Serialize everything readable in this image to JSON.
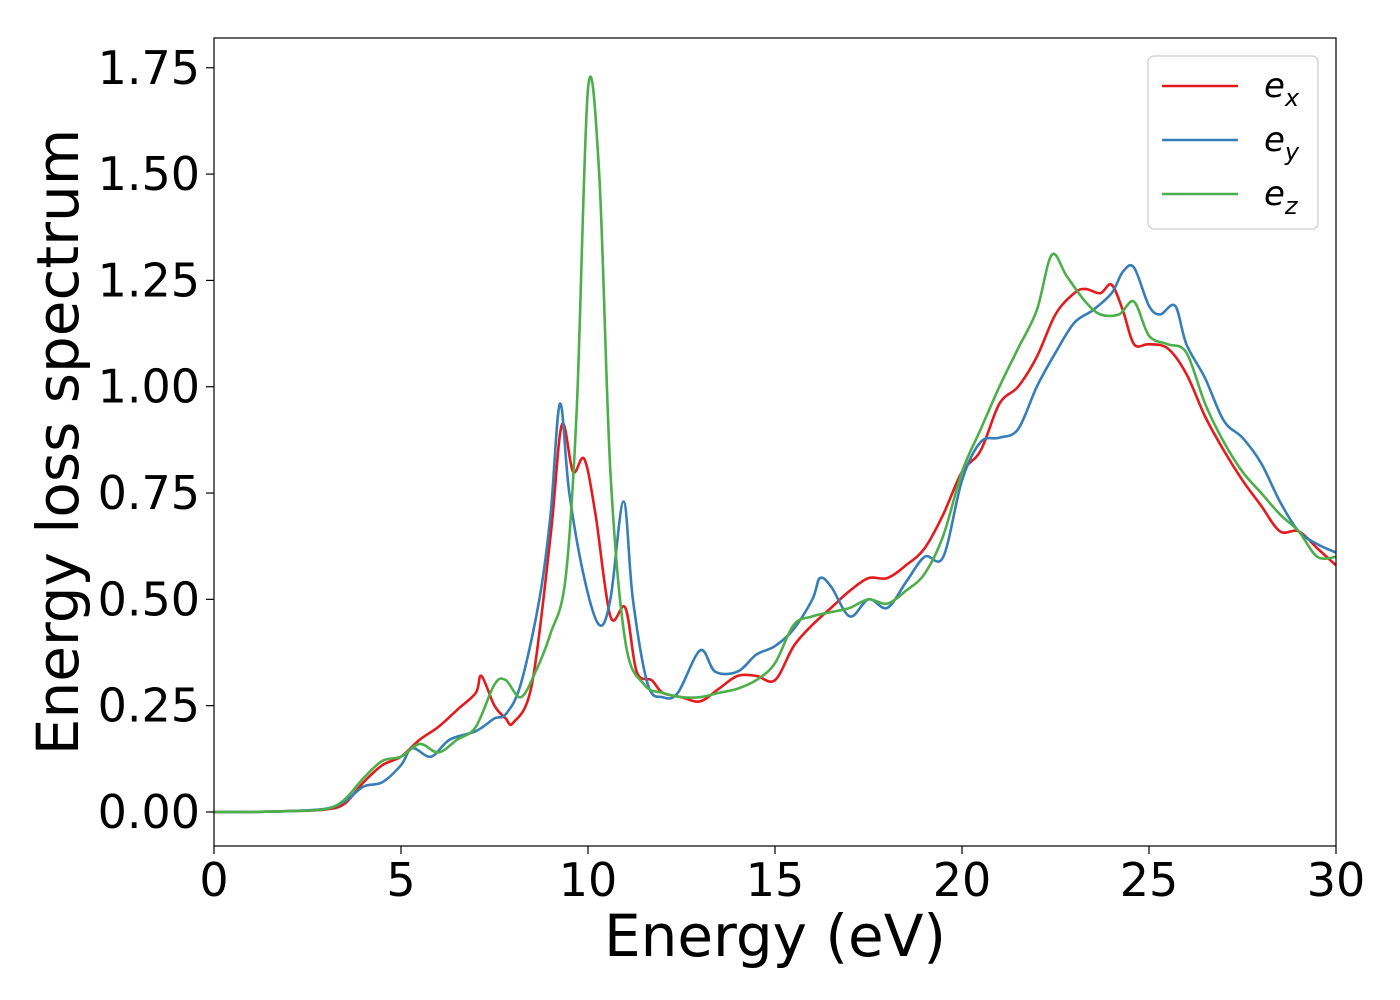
{
  "chart_data": {
    "type": "line",
    "xlabel": "Energy (eV)",
    "ylabel": "Energy loss spectrum",
    "xlim": [
      0,
      30
    ],
    "ylim": [
      -0.08,
      1.82
    ],
    "x_ticks": [
      "0",
      "5",
      "10",
      "15",
      "20",
      "25",
      "30"
    ],
    "y_ticks": [
      "0.00",
      "0.25",
      "0.50",
      "0.75",
      "1.00",
      "1.25",
      "1.50",
      "1.75"
    ],
    "grid": false,
    "legend_position": "top-right",
    "series": [
      {
        "name": "e_x",
        "label_base": "e",
        "label_sub": "x",
        "color": "#e41a1c",
        "points": [
          [
            0,
            0
          ],
          [
            1,
            0
          ],
          [
            2,
            0.002
          ],
          [
            3,
            0.006
          ],
          [
            3.5,
            0.02
          ],
          [
            4,
            0.07
          ],
          [
            4.5,
            0.11
          ],
          [
            5,
            0.13
          ],
          [
            5.5,
            0.17
          ],
          [
            6,
            0.2
          ],
          [
            6.5,
            0.24
          ],
          [
            7,
            0.28
          ],
          [
            7.15,
            0.32
          ],
          [
            7.5,
            0.25
          ],
          [
            7.8,
            0.22
          ],
          [
            8,
            0.21
          ],
          [
            8.5,
            0.3
          ],
          [
            9,
            0.65
          ],
          [
            9.3,
            0.91
          ],
          [
            9.6,
            0.8
          ],
          [
            9.9,
            0.83
          ],
          [
            10.2,
            0.7
          ],
          [
            10.6,
            0.46
          ],
          [
            11,
            0.48
          ],
          [
            11.3,
            0.33
          ],
          [
            11.7,
            0.31
          ],
          [
            12,
            0.28
          ],
          [
            12.5,
            0.27
          ],
          [
            13,
            0.26
          ],
          [
            13.5,
            0.29
          ],
          [
            14,
            0.32
          ],
          [
            14.5,
            0.32
          ],
          [
            15,
            0.31
          ],
          [
            15.5,
            0.39
          ],
          [
            16,
            0.44
          ],
          [
            16.5,
            0.48
          ],
          [
            17,
            0.52
          ],
          [
            17.5,
            0.55
          ],
          [
            18,
            0.55
          ],
          [
            18.5,
            0.58
          ],
          [
            19,
            0.62
          ],
          [
            19.5,
            0.7
          ],
          [
            20,
            0.8
          ],
          [
            20.5,
            0.85
          ],
          [
            21,
            0.96
          ],
          [
            21.5,
            1.0
          ],
          [
            22,
            1.07
          ],
          [
            22.5,
            1.17
          ],
          [
            23,
            1.22
          ],
          [
            23.3,
            1.23
          ],
          [
            23.7,
            1.22
          ],
          [
            24,
            1.24
          ],
          [
            24.3,
            1.18
          ],
          [
            24.6,
            1.1
          ],
          [
            25,
            1.1
          ],
          [
            25.5,
            1.09
          ],
          [
            26,
            1.03
          ],
          [
            26.5,
            0.93
          ],
          [
            27,
            0.85
          ],
          [
            27.5,
            0.78
          ],
          [
            28,
            0.72
          ],
          [
            28.5,
            0.66
          ],
          [
            29,
            0.66
          ],
          [
            29.5,
            0.62
          ],
          [
            30,
            0.58
          ]
        ]
      },
      {
        "name": "e_y",
        "label_base": "e",
        "label_sub": "y",
        "color": "#377eb8",
        "points": [
          [
            0,
            0
          ],
          [
            1,
            0
          ],
          [
            2,
            0.002
          ],
          [
            3,
            0.008
          ],
          [
            3.5,
            0.025
          ],
          [
            4,
            0.06
          ],
          [
            4.5,
            0.07
          ],
          [
            5,
            0.11
          ],
          [
            5.3,
            0.15
          ],
          [
            5.8,
            0.13
          ],
          [
            6.3,
            0.17
          ],
          [
            7,
            0.19
          ],
          [
            7.5,
            0.22
          ],
          [
            7.8,
            0.23
          ],
          [
            8.2,
            0.3
          ],
          [
            8.7,
            0.5
          ],
          [
            9,
            0.7
          ],
          [
            9.25,
            0.96
          ],
          [
            9.5,
            0.75
          ],
          [
            9.9,
            0.55
          ],
          [
            10.3,
            0.44
          ],
          [
            10.6,
            0.5
          ],
          [
            10.95,
            0.73
          ],
          [
            11.2,
            0.5
          ],
          [
            11.6,
            0.3
          ],
          [
            12,
            0.27
          ],
          [
            12.4,
            0.28
          ],
          [
            13,
            0.38
          ],
          [
            13.4,
            0.33
          ],
          [
            14,
            0.33
          ],
          [
            14.5,
            0.37
          ],
          [
            15,
            0.39
          ],
          [
            15.5,
            0.43
          ],
          [
            16,
            0.5
          ],
          [
            16.2,
            0.55
          ],
          [
            16.5,
            0.53
          ],
          [
            17,
            0.46
          ],
          [
            17.5,
            0.5
          ],
          [
            18,
            0.48
          ],
          [
            18.5,
            0.54
          ],
          [
            19,
            0.6
          ],
          [
            19.5,
            0.6
          ],
          [
            20,
            0.78
          ],
          [
            20.5,
            0.87
          ],
          [
            21,
            0.88
          ],
          [
            21.5,
            0.9
          ],
          [
            22,
            1.0
          ],
          [
            22.5,
            1.08
          ],
          [
            23,
            1.15
          ],
          [
            23.5,
            1.18
          ],
          [
            24,
            1.22
          ],
          [
            24.3,
            1.27
          ],
          [
            24.6,
            1.28
          ],
          [
            25,
            1.19
          ],
          [
            25.3,
            1.17
          ],
          [
            25.7,
            1.19
          ],
          [
            26,
            1.1
          ],
          [
            26.5,
            1.02
          ],
          [
            27,
            0.92
          ],
          [
            27.5,
            0.88
          ],
          [
            28,
            0.82
          ],
          [
            28.5,
            0.73
          ],
          [
            29,
            0.66
          ],
          [
            29.5,
            0.63
          ],
          [
            30,
            0.61
          ]
        ]
      },
      {
        "name": "e_z",
        "label_base": "e",
        "label_sub": "z",
        "color": "#4daf4a",
        "points": [
          [
            0,
            0
          ],
          [
            1,
            0
          ],
          [
            2,
            0.002
          ],
          [
            3,
            0.007
          ],
          [
            3.5,
            0.03
          ],
          [
            4,
            0.08
          ],
          [
            4.5,
            0.12
          ],
          [
            5,
            0.13
          ],
          [
            5.5,
            0.16
          ],
          [
            6,
            0.14
          ],
          [
            6.5,
            0.17
          ],
          [
            7,
            0.2
          ],
          [
            7.5,
            0.3
          ],
          [
            7.8,
            0.31
          ],
          [
            8.2,
            0.27
          ],
          [
            8.6,
            0.33
          ],
          [
            9,
            0.42
          ],
          [
            9.4,
            0.55
          ],
          [
            9.7,
            0.95
          ],
          [
            10,
            1.7
          ],
          [
            10.3,
            1.5
          ],
          [
            10.6,
            0.8
          ],
          [
            11,
            0.4
          ],
          [
            11.5,
            0.3
          ],
          [
            12,
            0.28
          ],
          [
            12.5,
            0.27
          ],
          [
            13,
            0.27
          ],
          [
            13.5,
            0.28
          ],
          [
            14,
            0.29
          ],
          [
            14.5,
            0.31
          ],
          [
            15,
            0.35
          ],
          [
            15.5,
            0.44
          ],
          [
            16,
            0.46
          ],
          [
            16.5,
            0.47
          ],
          [
            17,
            0.48
          ],
          [
            17.5,
            0.5
          ],
          [
            18,
            0.49
          ],
          [
            18.5,
            0.52
          ],
          [
            19,
            0.56
          ],
          [
            19.5,
            0.65
          ],
          [
            20,
            0.8
          ],
          [
            20.5,
            0.9
          ],
          [
            21,
            1.0
          ],
          [
            21.5,
            1.09
          ],
          [
            22,
            1.18
          ],
          [
            22.4,
            1.31
          ],
          [
            22.8,
            1.26
          ],
          [
            23.3,
            1.2
          ],
          [
            23.7,
            1.17
          ],
          [
            24.2,
            1.17
          ],
          [
            24.6,
            1.2
          ],
          [
            25,
            1.12
          ],
          [
            25.5,
            1.1
          ],
          [
            26,
            1.08
          ],
          [
            26.5,
            0.96
          ],
          [
            27,
            0.87
          ],
          [
            27.5,
            0.8
          ],
          [
            28,
            0.75
          ],
          [
            28.5,
            0.7
          ],
          [
            29,
            0.66
          ],
          [
            29.5,
            0.6
          ],
          [
            30,
            0.6
          ]
        ]
      }
    ]
  }
}
